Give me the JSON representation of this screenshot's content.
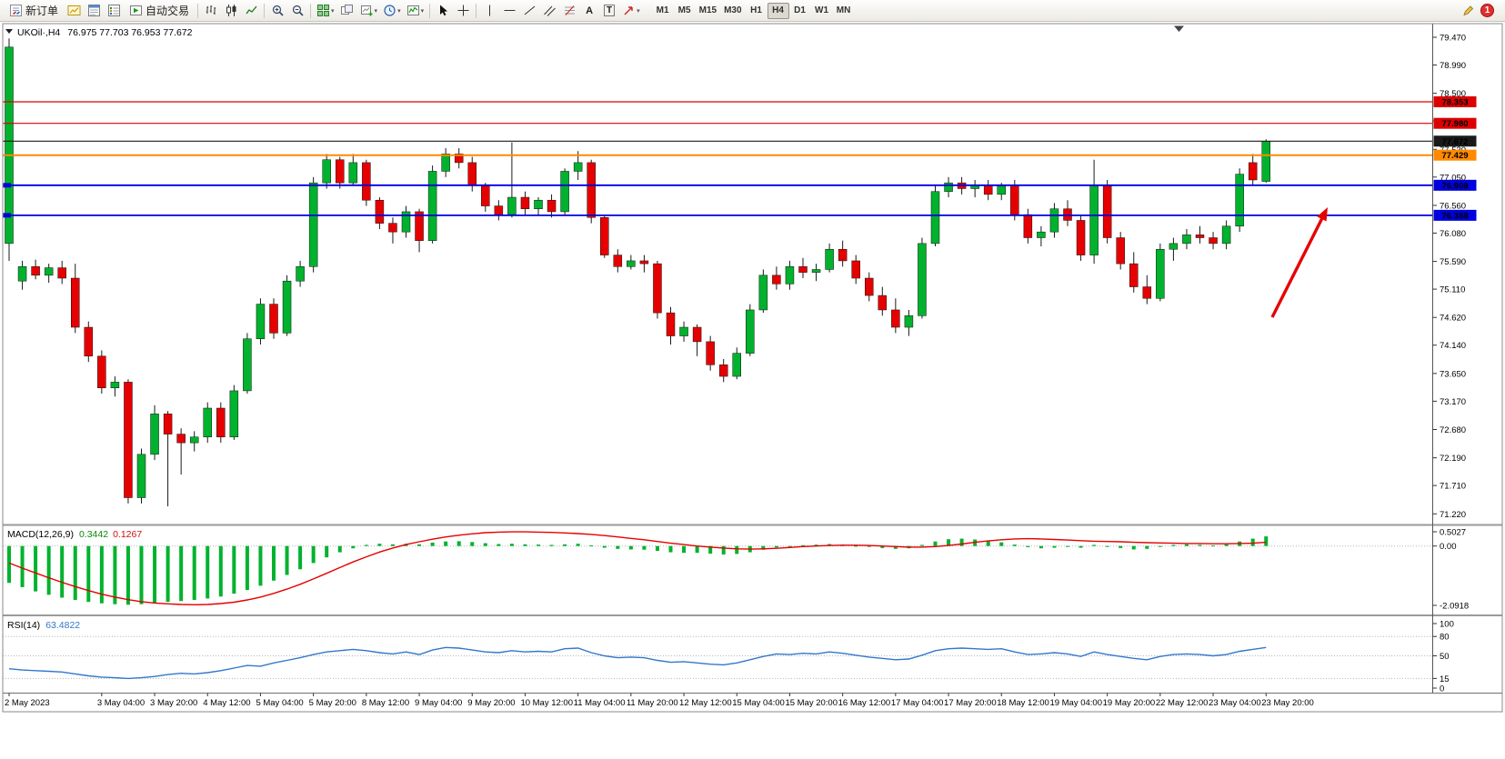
{
  "toolbar": {
    "new_order_label": "新订单",
    "auto_trading_label": "自动交易",
    "text_tool_label": "A",
    "text_box_label": "T",
    "timeframes": [
      "M1",
      "M5",
      "M15",
      "M30",
      "H1",
      "H4",
      "D1",
      "W1",
      "MN"
    ],
    "active_timeframe": "H4",
    "notification_badge": "1"
  },
  "chart": {
    "symbol_label": "UKOil·,H4",
    "ohlc_label": "76.975 77.703 76.953 77.672",
    "price_axis_labels": [
      "79.470",
      "78.990",
      "78.500",
      "78.020",
      "77.530",
      "77.050",
      "76.560",
      "76.080",
      "75.590",
      "75.110",
      "74.620",
      "74.140",
      "73.650",
      "73.170",
      "72.680",
      "72.190",
      "71.710",
      "71.220"
    ],
    "levels": [
      {
        "price": 78.353,
        "label": "78.353",
        "color": "#dd0000",
        "width": 1.2,
        "edge_tag": false
      },
      {
        "price": 77.98,
        "label": "77.980",
        "color": "#dd0000",
        "width": 1.2,
        "edge_tag": false
      },
      {
        "price": 77.672,
        "label": "77.672",
        "color": "#1a1a1a",
        "width": 1.1,
        "edge_tag": false
      },
      {
        "price": 77.429,
        "label": "77.429",
        "color": "#ff8a00",
        "width": 2.0,
        "edge_tag": false
      },
      {
        "price": 76.908,
        "label": "76.908",
        "color": "#0000dd",
        "width": 1.8,
        "edge_tag": true
      },
      {
        "price": 76.388,
        "label": "76.388",
        "color": "#0000dd",
        "width": 1.8,
        "edge_tag": true
      }
    ],
    "colors": {
      "bull": "#00b22d",
      "bear": "#e60000",
      "wick": "#1a1a1a",
      "macd_hist": "#00b22d",
      "macd_signal": "#e60000",
      "rsi_line": "#3377cc",
      "arrow": "#e60000",
      "grid_dots": "#b5b5b5"
    }
  },
  "macd_panel": {
    "title": "MACD(12,26,9)",
    "value_main": "0.3442",
    "value_signal": "0.1267",
    "axis": [
      {
        "label": "0.5027",
        "value": 0.5027
      },
      {
        "label": "0.00",
        "value": 0
      },
      {
        "label": "-2.0918",
        "value": -2.0918
      }
    ]
  },
  "rsi_panel": {
    "title": "RSI(14)",
    "value": "63.4822",
    "axis": [
      {
        "label": "100",
        "value": 100
      },
      {
        "label": "80",
        "value": 80
      },
      {
        "label": "50",
        "value": 50
      },
      {
        "label": "15",
        "value": 15
      },
      {
        "label": "0",
        "value": 0
      }
    ],
    "level_lines": [
      80,
      50,
      15
    ]
  },
  "time_axis": {
    "labels": [
      "2 May 2023",
      "3 May 04:00",
      "3 May 20:00",
      "4 May 12:00",
      "5 May 04:00",
      "5 May 20:00",
      "8 May 12:00",
      "9 May 04:00",
      "9 May 20:00",
      "10 May 12:00",
      "11 May 04:00",
      "11 May 20:00",
      "12 May 12:00",
      "15 May 04:00",
      "15 May 20:00",
      "16 May 12:00",
      "17 May 04:00",
      "17 May 20:00",
      "18 May 12:00",
      "19 May 04:00",
      "19 May 20:00",
      "22 May 12:00",
      "23 May 04:00",
      "23 May 20:00"
    ],
    "candle_indices": [
      0,
      7,
      11,
      15,
      19,
      23,
      27,
      31,
      35,
      39,
      43,
      47,
      51,
      55,
      59,
      63,
      67,
      71,
      75,
      79,
      83,
      87,
      91,
      95
    ]
  },
  "chart_data": {
    "type": "candlestick",
    "symbol": "UKOil",
    "timeframe": "H4",
    "current_bar": {
      "open": 76.975,
      "high": 77.703,
      "low": 76.953,
      "close": 77.672
    },
    "y_range": [
      71.22,
      79.47
    ],
    "horizontal_levels": [
      78.353,
      77.98,
      77.672,
      77.429,
      76.908,
      76.388
    ],
    "ohlc": [
      [
        75.9,
        79.45,
        75.6,
        79.3
      ],
      [
        75.25,
        75.6,
        75.1,
        75.5
      ],
      [
        75.5,
        75.62,
        75.28,
        75.35
      ],
      [
        75.35,
        75.55,
        75.22,
        75.48
      ],
      [
        75.48,
        75.6,
        75.2,
        75.3
      ],
      [
        75.3,
        75.55,
        74.35,
        74.45
      ],
      [
        74.45,
        74.55,
        73.85,
        73.95
      ],
      [
        73.95,
        74.05,
        73.3,
        73.4
      ],
      [
        73.4,
        73.6,
        73.25,
        73.5
      ],
      [
        73.5,
        73.55,
        71.4,
        71.5
      ],
      [
        71.5,
        72.35,
        71.4,
        72.25
      ],
      [
        72.25,
        73.1,
        72.15,
        72.95
      ],
      [
        72.95,
        73.0,
        71.35,
        72.6
      ],
      [
        72.6,
        72.7,
        71.9,
        72.45
      ],
      [
        72.45,
        72.65,
        72.3,
        72.55
      ],
      [
        72.55,
        73.15,
        72.45,
        73.05
      ],
      [
        73.05,
        73.15,
        72.45,
        72.55
      ],
      [
        72.55,
        73.45,
        72.5,
        73.35
      ],
      [
        73.35,
        74.35,
        73.3,
        74.25
      ],
      [
        74.25,
        74.95,
        74.15,
        74.85
      ],
      [
        74.85,
        74.95,
        74.25,
        74.35
      ],
      [
        74.35,
        75.35,
        74.3,
        75.25
      ],
      [
        75.25,
        75.6,
        75.15,
        75.5
      ],
      [
        75.5,
        77.05,
        75.4,
        76.95
      ],
      [
        76.95,
        77.45,
        76.85,
        77.35
      ],
      [
        77.35,
        77.4,
        76.85,
        76.95
      ],
      [
        76.95,
        77.45,
        76.9,
        77.3
      ],
      [
        77.3,
        77.35,
        76.55,
        76.65
      ],
      [
        76.65,
        76.7,
        76.15,
        76.25
      ],
      [
        76.25,
        76.35,
        75.9,
        76.1
      ],
      [
        76.1,
        76.55,
        76.0,
        76.45
      ],
      [
        76.45,
        76.5,
        75.75,
        75.95
      ],
      [
        75.95,
        77.25,
        75.9,
        77.15
      ],
      [
        77.15,
        77.55,
        77.05,
        77.45
      ],
      [
        77.45,
        77.55,
        77.2,
        77.3
      ],
      [
        77.3,
        77.4,
        76.8,
        76.9
      ],
      [
        76.9,
        76.95,
        76.45,
        76.55
      ],
      [
        76.55,
        76.65,
        76.3,
        76.4
      ],
      [
        76.4,
        77.65,
        76.35,
        76.7
      ],
      [
        76.7,
        76.8,
        76.4,
        76.5
      ],
      [
        76.5,
        76.7,
        76.4,
        76.65
      ],
      [
        76.65,
        76.75,
        76.35,
        76.45
      ],
      [
        76.45,
        77.2,
        76.4,
        77.15
      ],
      [
        77.15,
        77.5,
        77.0,
        77.3
      ],
      [
        77.3,
        77.35,
        76.25,
        76.35
      ],
      [
        76.35,
        76.4,
        75.65,
        75.7
      ],
      [
        75.7,
        75.8,
        75.4,
        75.5
      ],
      [
        75.5,
        75.7,
        75.45,
        75.6
      ],
      [
        75.6,
        75.7,
        75.4,
        75.55
      ],
      [
        75.55,
        75.6,
        74.6,
        74.7
      ],
      [
        74.7,
        74.8,
        74.15,
        74.3
      ],
      [
        74.3,
        74.55,
        74.2,
        74.45
      ],
      [
        74.45,
        74.5,
        73.95,
        74.2
      ],
      [
        74.2,
        74.3,
        73.7,
        73.8
      ],
      [
        73.8,
        73.9,
        73.5,
        73.6
      ],
      [
        73.6,
        74.1,
        73.55,
        74.0
      ],
      [
        74.0,
        74.85,
        73.95,
        74.75
      ],
      [
        74.75,
        75.45,
        74.7,
        75.35
      ],
      [
        75.35,
        75.5,
        75.1,
        75.2
      ],
      [
        75.2,
        75.6,
        75.1,
        75.5
      ],
      [
        75.5,
        75.65,
        75.3,
        75.4
      ],
      [
        75.4,
        75.55,
        75.25,
        75.45
      ],
      [
        75.45,
        75.9,
        75.4,
        75.8
      ],
      [
        75.8,
        75.95,
        75.5,
        75.6
      ],
      [
        75.6,
        75.7,
        75.2,
        75.3
      ],
      [
        75.3,
        75.4,
        74.9,
        75.0
      ],
      [
        75.0,
        75.15,
        74.65,
        74.75
      ],
      [
        74.75,
        74.95,
        74.35,
        74.45
      ],
      [
        74.45,
        74.75,
        74.3,
        74.65
      ],
      [
        74.65,
        76.0,
        74.6,
        75.9
      ],
      [
        75.9,
        76.9,
        75.85,
        76.8
      ],
      [
        76.8,
        77.05,
        76.7,
        76.95
      ],
      [
        76.95,
        77.05,
        76.75,
        76.85
      ],
      [
        76.85,
        77.0,
        76.7,
        76.9
      ],
      [
        76.9,
        77.0,
        76.65,
        76.75
      ],
      [
        76.75,
        76.95,
        76.65,
        76.9
      ],
      [
        76.9,
        77.0,
        76.3,
        76.4
      ],
      [
        76.4,
        76.5,
        75.9,
        76.0
      ],
      [
        76.0,
        76.2,
        75.85,
        76.1
      ],
      [
        76.1,
        76.6,
        76.0,
        76.5
      ],
      [
        76.5,
        76.65,
        76.2,
        76.3
      ],
      [
        76.3,
        76.4,
        75.6,
        75.7
      ],
      [
        75.7,
        77.35,
        75.55,
        76.9
      ],
      [
        76.9,
        77.0,
        75.9,
        76.0
      ],
      [
        76.0,
        76.1,
        75.45,
        75.55
      ],
      [
        75.55,
        75.75,
        75.05,
        75.15
      ],
      [
        75.15,
        75.35,
        74.85,
        74.95
      ],
      [
        74.95,
        75.9,
        74.9,
        75.8
      ],
      [
        75.8,
        76.0,
        75.6,
        75.9
      ],
      [
        75.9,
        76.15,
        75.8,
        76.05
      ],
      [
        76.05,
        76.2,
        75.9,
        76.0
      ],
      [
        76.0,
        76.1,
        75.8,
        75.9
      ],
      [
        75.9,
        76.3,
        75.8,
        76.2
      ],
      [
        76.2,
        77.2,
        76.1,
        77.1
      ],
      [
        77.3,
        77.45,
        76.9,
        77.0
      ],
      [
        76.975,
        77.703,
        76.953,
        77.672
      ]
    ],
    "macd": {
      "params": "12,26,9",
      "last_main": 0.3442,
      "last_signal": 0.1267,
      "histogram": [
        -1.3,
        -1.45,
        -1.6,
        -1.72,
        -1.82,
        -1.9,
        -1.97,
        -2.02,
        -2.05,
        -2.07,
        -2.05,
        -2.0,
        -1.97,
        -1.94,
        -1.9,
        -1.85,
        -1.78,
        -1.68,
        -1.55,
        -1.4,
        -1.22,
        -1.02,
        -0.82,
        -0.6,
        -0.4,
        -0.22,
        -0.08,
        0.04,
        0.08,
        0.06,
        0.08,
        0.06,
        0.12,
        0.16,
        0.17,
        0.14,
        0.1,
        0.07,
        0.08,
        0.06,
        0.05,
        0.04,
        0.06,
        0.08,
        0.02,
        -0.06,
        -0.1,
        -0.12,
        -0.13,
        -0.17,
        -0.22,
        -0.24,
        -0.24,
        -0.27,
        -0.3,
        -0.28,
        -0.22,
        -0.13,
        -0.05,
        0.0,
        0.03,
        0.05,
        0.07,
        0.05,
        0.01,
        -0.03,
        -0.07,
        -0.1,
        -0.08,
        0.04,
        0.16,
        0.24,
        0.26,
        0.23,
        0.18,
        0.13,
        0.05,
        -0.04,
        -0.08,
        -0.06,
        -0.02,
        -0.06,
        0.04,
        0.0,
        -0.07,
        -0.12,
        -0.1,
        -0.02,
        0.04,
        0.06,
        0.04,
        0.02,
        0.06,
        0.16,
        0.26,
        0.34
      ],
      "signal": [
        -0.6,
        -0.78,
        -0.95,
        -1.12,
        -1.28,
        -1.43,
        -1.57,
        -1.7,
        -1.8,
        -1.89,
        -1.96,
        -2.01,
        -2.04,
        -2.06,
        -2.07,
        -2.06,
        -2.03,
        -1.98,
        -1.9,
        -1.8,
        -1.67,
        -1.52,
        -1.35,
        -1.16,
        -0.96,
        -0.76,
        -0.56,
        -0.38,
        -0.21,
        -0.07,
        0.05,
        0.15,
        0.24,
        0.32,
        0.38,
        0.43,
        0.47,
        0.49,
        0.5,
        0.5,
        0.49,
        0.48,
        0.46,
        0.44,
        0.41,
        0.37,
        0.32,
        0.27,
        0.22,
        0.16,
        0.1,
        0.05,
        0.0,
        -0.04,
        -0.07,
        -0.1,
        -0.11,
        -0.1,
        -0.08,
        -0.05,
        -0.02,
        0.0,
        0.02,
        0.03,
        0.03,
        0.02,
        0.0,
        -0.02,
        -0.04,
        -0.04,
        -0.02,
        0.02,
        0.07,
        0.13,
        0.18,
        0.22,
        0.25,
        0.26,
        0.25,
        0.23,
        0.21,
        0.19,
        0.17,
        0.16,
        0.15,
        0.13,
        0.12,
        0.11,
        0.1,
        0.09,
        0.09,
        0.08,
        0.08,
        0.09,
        0.1,
        0.13
      ]
    },
    "rsi": {
      "period": 14,
      "last": 63.4822,
      "values": [
        30,
        28,
        27,
        26,
        25,
        22,
        19,
        17,
        16,
        15,
        16,
        18,
        21,
        23,
        22,
        24,
        27,
        31,
        35,
        34,
        39,
        43,
        47,
        52,
        56,
        58,
        60,
        58,
        55,
        53,
        56,
        52,
        59,
        63,
        62,
        59,
        56,
        55,
        58,
        56,
        57,
        56,
        61,
        62,
        55,
        50,
        47,
        48,
        47,
        43,
        40,
        41,
        39,
        37,
        36,
        39,
        44,
        49,
        53,
        52,
        54,
        53,
        56,
        54,
        51,
        48,
        46,
        44,
        45,
        51,
        58,
        61,
        62,
        61,
        60,
        61,
        56,
        52,
        53,
        55,
        53,
        49,
        56,
        52,
        49,
        46,
        44,
        49,
        52,
        53,
        52,
        50,
        52,
        57,
        60,
        63
      ]
    }
  }
}
